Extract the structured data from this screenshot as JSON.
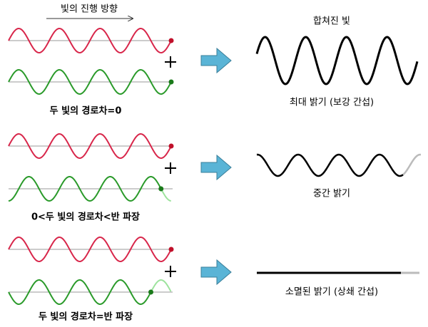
{
  "header": {
    "direction": "빛의 진행 방향",
    "combined": "합쳐진 빛"
  },
  "rows": [
    {
      "condition": "두 빛의 경로차=0",
      "result": "최대 밝기 (보강 간섭)"
    },
    {
      "condition": "0<두 빛의 경로차<반 파장",
      "result": "중간 밝기"
    },
    {
      "condition": "두 빛의 경로차=반 파장",
      "result": "소멸된 밝기 (상쇄 간섭)"
    }
  ]
}
